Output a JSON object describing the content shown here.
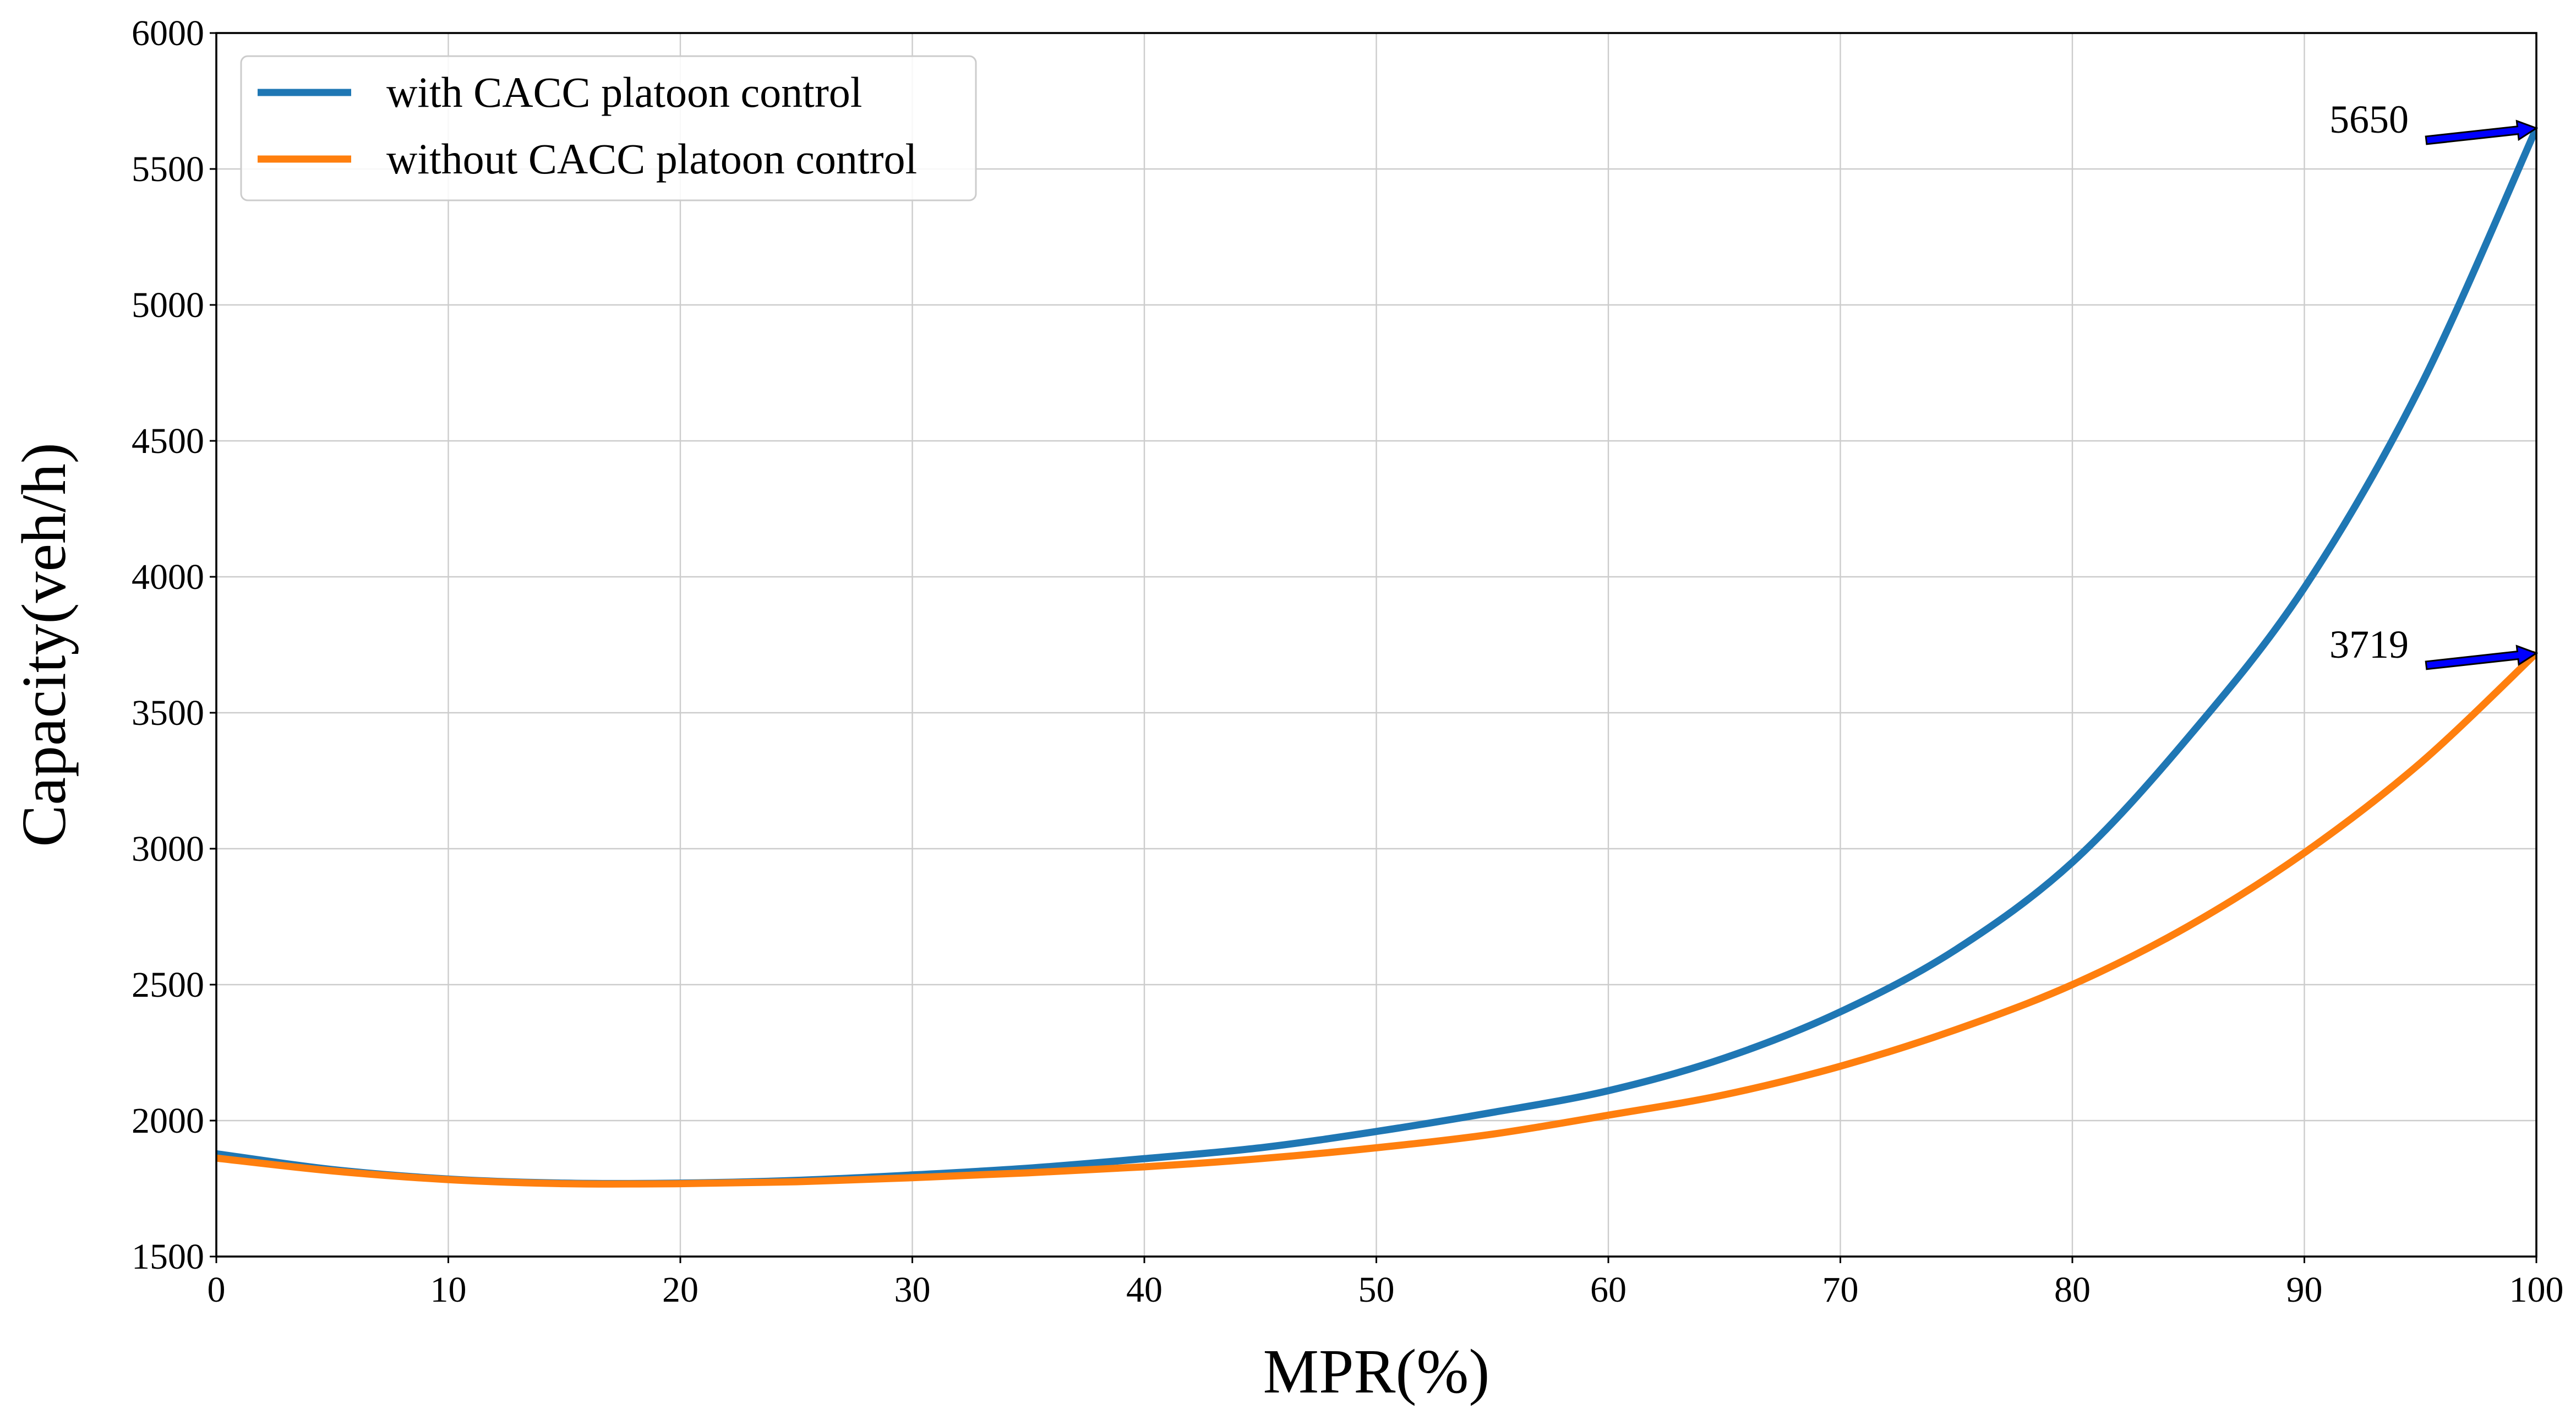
{
  "chart_data": {
    "type": "line",
    "title": "",
    "xlabel": "MPR(%)",
    "ylabel": "Capacity(veh/h)",
    "xlim": [
      0,
      100
    ],
    "ylim": [
      1500,
      6000
    ],
    "xticks": [
      0,
      10,
      20,
      30,
      40,
      50,
      60,
      70,
      80,
      90,
      100
    ],
    "yticks": [
      1500,
      2000,
      2500,
      3000,
      3500,
      4000,
      4500,
      5000,
      5500,
      6000
    ],
    "grid": true,
    "legend_position": "top-left",
    "series": [
      {
        "name": "with CACC platoon control",
        "color": "#1f77b4",
        "x": [
          0,
          5,
          10,
          15,
          20,
          25,
          30,
          35,
          40,
          45,
          50,
          55,
          60,
          65,
          70,
          75,
          80,
          85,
          90,
          95,
          100
        ],
        "y": [
          1878,
          1820,
          1785,
          1770,
          1770,
          1780,
          1800,
          1825,
          1860,
          1900,
          1960,
          2030,
          2110,
          2230,
          2400,
          2630,
          2950,
          3410,
          3960,
          4700,
          5650
        ]
      },
      {
        "name": "without CACC platoon control",
        "color": "#ff7f0e",
        "x": [
          0,
          5,
          10,
          15,
          20,
          25,
          30,
          35,
          40,
          45,
          50,
          55,
          60,
          65,
          70,
          75,
          80,
          85,
          90,
          95,
          100
        ],
        "y": [
          1862,
          1815,
          1783,
          1768,
          1768,
          1775,
          1790,
          1808,
          1830,
          1860,
          1900,
          1950,
          2020,
          2095,
          2200,
          2335,
          2500,
          2715,
          2985,
          3315,
          3719
        ]
      }
    ],
    "annotations": [
      {
        "text": "5650",
        "x": 100,
        "y": 5650,
        "arrow_color": "#0000ff"
      },
      {
        "text": "3719",
        "x": 100,
        "y": 3719,
        "arrow_color": "#0000ff"
      }
    ]
  }
}
